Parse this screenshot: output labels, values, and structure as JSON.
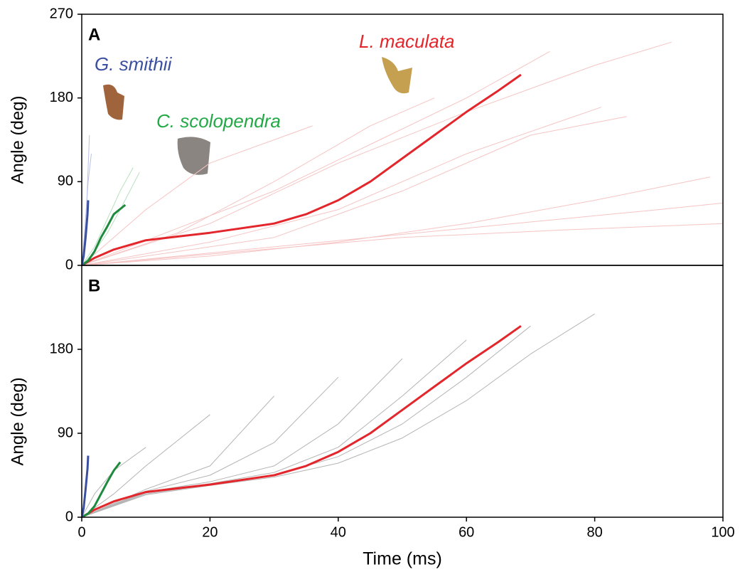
{
  "chart_data": [
    {
      "type": "line",
      "panel_label": "A",
      "ylabel": "Angle (deg)",
      "xlim": [
        0,
        100
      ],
      "ylim": [
        0,
        270
      ],
      "yticks": [
        0,
        90,
        180,
        270
      ],
      "annotations": [
        {
          "text": "G. smithii",
          "color": "#3b4fa0"
        },
        {
          "text": "C. scolopendra",
          "color": "#22a845"
        },
        {
          "text": "L. maculata",
          "color": "#e3262b"
        }
      ],
      "series": [
        {
          "color": "#f6c4c4",
          "x": [
            0,
            20,
            40,
            60,
            80,
            92
          ],
          "values": [
            0,
            45,
            110,
            165,
            215,
            240
          ]
        },
        {
          "color": "#f6c4c4",
          "x": [
            0,
            15,
            30,
            45,
            55
          ],
          "values": [
            0,
            35,
            90,
            150,
            180
          ]
        },
        {
          "color": "#f6c4c4",
          "x": [
            0,
            20,
            40,
            60,
            81
          ],
          "values": [
            0,
            25,
            60,
            120,
            170
          ]
        },
        {
          "color": "#f6c4c4",
          "x": [
            0,
            30,
            60,
            90,
            100
          ],
          "values": [
            0,
            20,
            40,
            60,
            67
          ]
        },
        {
          "color": "#f6c4c4",
          "x": [
            0,
            25,
            50,
            75,
            100
          ],
          "values": [
            0,
            15,
            30,
            38,
            45
          ]
        },
        {
          "color": "#f6c4c4",
          "x": [
            0,
            20,
            40,
            60,
            80,
            98
          ],
          "values": [
            0,
            10,
            25,
            45,
            70,
            95
          ]
        },
        {
          "color": "#f6c4c4",
          "x": [
            0,
            15,
            30,
            45,
            60,
            73
          ],
          "values": [
            0,
            40,
            80,
            130,
            180,
            230
          ]
        },
        {
          "color": "#f6c4c4",
          "x": [
            0,
            10,
            20,
            36
          ],
          "values": [
            0,
            60,
            110,
            150
          ]
        },
        {
          "color": "#f6c4c4",
          "x": [
            0,
            30,
            50,
            70,
            85
          ],
          "values": [
            0,
            30,
            80,
            140,
            160
          ]
        },
        {
          "color": "#b9c1e6",
          "x": [
            0,
            0.5,
            1,
            1.5
          ],
          "values": [
            0,
            40,
            90,
            120
          ]
        },
        {
          "color": "#b9c1e6",
          "x": [
            0,
            0.4,
            0.8,
            1.2
          ],
          "values": [
            0,
            30,
            70,
            140
          ]
        },
        {
          "color": "#b6e0c0",
          "x": [
            0,
            2,
            4,
            6,
            8
          ],
          "values": [
            0,
            20,
            50,
            80,
            105
          ]
        },
        {
          "color": "#b6e0c0",
          "x": [
            0,
            2,
            4,
            6,
            9
          ],
          "values": [
            0,
            15,
            35,
            60,
            100
          ]
        },
        {
          "name": "L. maculata",
          "color": "#e3262b",
          "x": [
            0,
            2,
            5,
            10,
            20,
            30,
            35,
            40,
            45,
            50,
            55,
            60,
            65,
            68.5
          ],
          "values": [
            0,
            8,
            17,
            27,
            35,
            45,
            55,
            70,
            90,
            115,
            140,
            165,
            188,
            205
          ]
        },
        {
          "name": "C. scolopendra",
          "color": "#1e8a3e",
          "x": [
            0,
            1,
            2,
            3,
            4,
            5,
            6.8
          ],
          "values": [
            0,
            5,
            15,
            30,
            42,
            55,
            65
          ]
        },
        {
          "name": "G. smithii",
          "color": "#3b4fa0",
          "x": [
            0,
            0.3,
            0.6,
            0.9,
            1.0
          ],
          "values": [
            0,
            10,
            30,
            55,
            70
          ]
        }
      ]
    },
    {
      "type": "line",
      "panel_label": "B",
      "ylabel": "Angle (deg)",
      "xlabel": "Time (ms)",
      "xlim": [
        0,
        100
      ],
      "ylim": [
        0,
        270
      ],
      "yticks": [
        0,
        90,
        180
      ],
      "xticks": [
        0,
        20,
        40,
        60,
        80,
        100
      ],
      "series": [
        {
          "color": "#b4b4b4",
          "x": [
            0,
            2,
            5,
            10
          ],
          "values": [
            0,
            25,
            50,
            75
          ]
        },
        {
          "color": "#b4b4b4",
          "x": [
            0,
            5,
            10,
            20
          ],
          "values": [
            0,
            25,
            55,
            110
          ]
        },
        {
          "color": "#b4b4b4",
          "x": [
            0,
            10,
            20,
            30
          ],
          "values": [
            0,
            30,
            55,
            130
          ]
        },
        {
          "color": "#b4b4b4",
          "x": [
            0,
            10,
            20,
            30,
            40
          ],
          "values": [
            0,
            28,
            45,
            80,
            150
          ]
        },
        {
          "color": "#b4b4b4",
          "x": [
            0,
            10,
            20,
            30,
            40,
            50
          ],
          "values": [
            0,
            27,
            38,
            55,
            100,
            170
          ]
        },
        {
          "color": "#b4b4b4",
          "x": [
            0,
            10,
            20,
            30,
            40,
            50,
            60
          ],
          "values": [
            0,
            26,
            36,
            48,
            75,
            130,
            190
          ]
        },
        {
          "color": "#b4b4b4",
          "x": [
            0,
            10,
            20,
            30,
            40,
            50,
            60,
            70
          ],
          "values": [
            0,
            25,
            35,
            45,
            65,
            100,
            150,
            205
          ]
        },
        {
          "color": "#b4b4b4",
          "x": [
            0,
            10,
            20,
            30,
            40,
            50,
            60,
            70,
            80
          ],
          "values": [
            0,
            24,
            34,
            43,
            58,
            85,
            125,
            175,
            218
          ]
        },
        {
          "name": "L. maculata",
          "color": "#e3262b",
          "x": [
            0,
            2,
            5,
            10,
            20,
            30,
            35,
            40,
            45,
            50,
            55,
            60,
            65,
            68.5
          ],
          "values": [
            0,
            8,
            17,
            27,
            35,
            45,
            55,
            70,
            90,
            115,
            140,
            165,
            188,
            205
          ]
        },
        {
          "name": "C. scolopendra",
          "color": "#1e8a3e",
          "x": [
            0,
            1,
            2,
            3,
            4,
            5,
            6
          ],
          "values": [
            0,
            4,
            12,
            25,
            38,
            50,
            59
          ]
        },
        {
          "name": "G. smithii",
          "color": "#3b4fa0",
          "x": [
            0,
            0.3,
            0.6,
            0.9,
            1.0
          ],
          "values": [
            0,
            10,
            30,
            52,
            66
          ]
        }
      ]
    }
  ]
}
